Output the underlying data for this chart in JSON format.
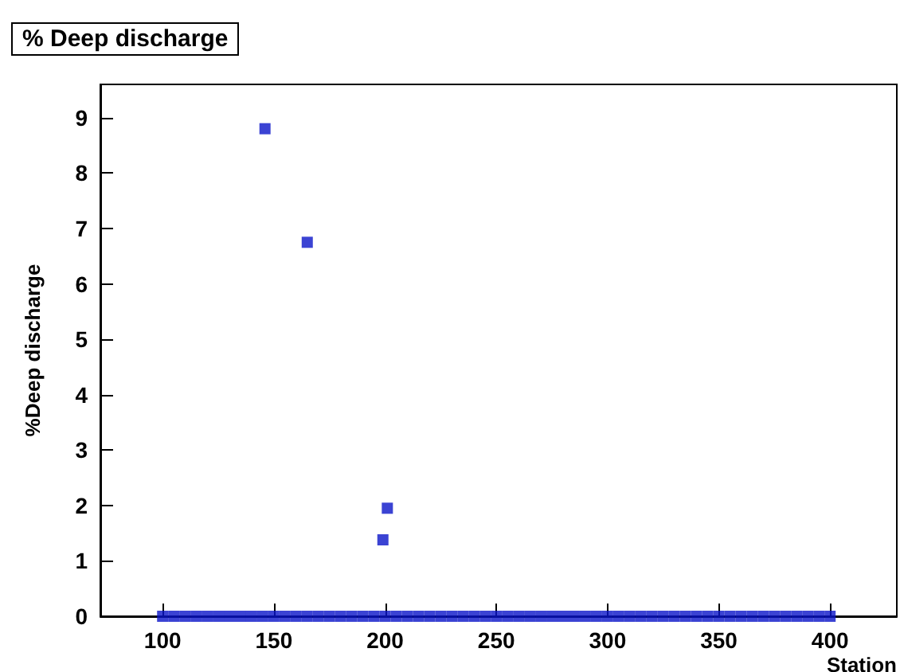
{
  "chart_data": {
    "type": "scatter",
    "title": "% Deep discharge",
    "xlabel": "Station",
    "ylabel": "%Deep discharge",
    "xlim": [
      72,
      430
    ],
    "xticks": [
      100,
      150,
      200,
      250,
      300,
      350,
      400
    ],
    "ylim": [
      0,
      9.6
    ],
    "yticks": [
      0,
      1,
      2,
      3,
      4,
      5,
      6,
      7,
      8,
      9
    ],
    "grid": false,
    "marker": "square",
    "series": [
      {
        "color": "#0a14c8",
        "x": [
          100,
          105,
          110,
          115,
          120,
          125,
          130,
          135,
          140,
          145,
          150,
          155,
          160,
          165,
          170,
          175,
          180,
          185,
          190,
          195,
          200,
          205,
          210,
          215,
          220,
          225,
          230,
          235,
          240,
          245,
          250,
          255,
          260,
          265,
          270,
          275,
          280,
          285,
          290,
          295,
          300,
          305,
          310,
          315,
          320,
          325,
          330,
          335,
          340,
          345,
          350,
          355,
          360,
          365,
          370,
          375,
          380,
          385,
          390,
          395,
          400,
          146,
          165,
          199,
          201
        ],
        "values": [
          0,
          0,
          0,
          0,
          0,
          0,
          0,
          0,
          0,
          0,
          0,
          0,
          0,
          0,
          0,
          0,
          0,
          0,
          0,
          0,
          0,
          0,
          0,
          0,
          0,
          0,
          0,
          0,
          0,
          0,
          0,
          0,
          0,
          0,
          0,
          0,
          0,
          0,
          0,
          0,
          0,
          0,
          0,
          0,
          0,
          0,
          0,
          0,
          0,
          0,
          0,
          0,
          0,
          0,
          0,
          0,
          0,
          0,
          0,
          0,
          0,
          8.8,
          6.75,
          1.38,
          1.95
        ]
      }
    ]
  }
}
